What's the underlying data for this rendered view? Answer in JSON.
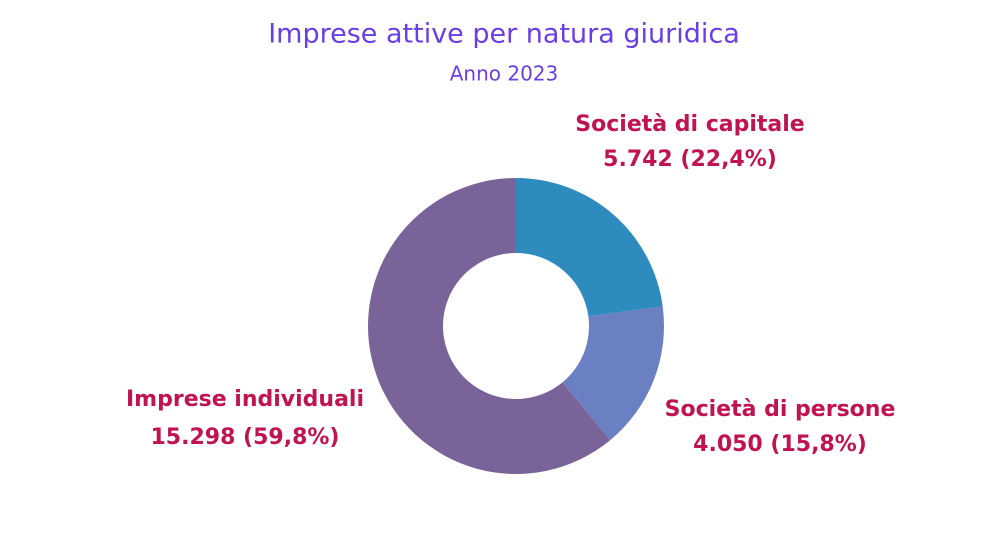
{
  "chart_data": {
    "type": "donut",
    "title": "Imprese attive per natura giuridica",
    "subtitle": "Anno 2023",
    "categories": [
      "Società di capitale",
      "Società di persone",
      "Imprese individuali"
    ],
    "values": [
      5742,
      4050,
      15298
    ],
    "value_labels": [
      "5.742 (22,4%)",
      "4.050 (15,8%)",
      "15.298 (59,8%)"
    ],
    "colors": [
      "#2e8bbd",
      "#6b80c2",
      "#7a6399"
    ]
  }
}
